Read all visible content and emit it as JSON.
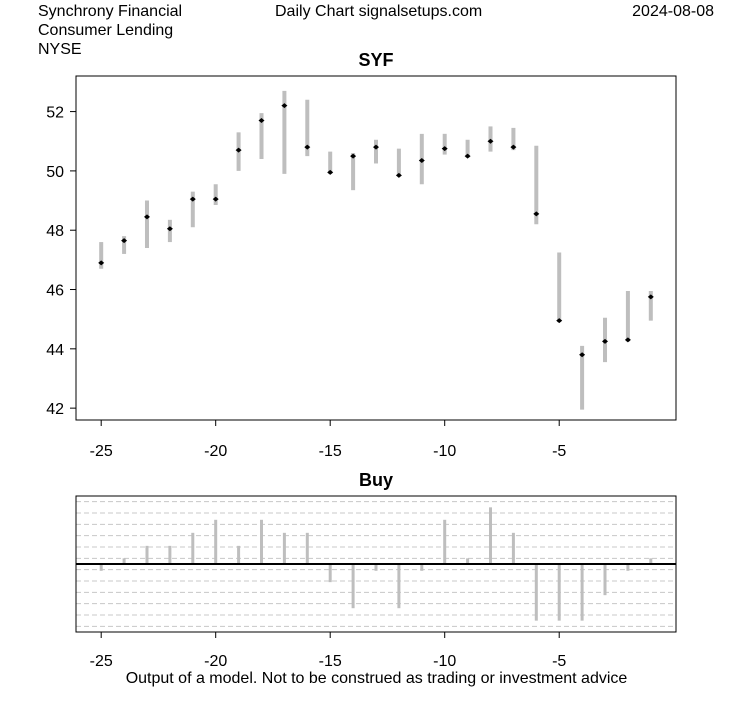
{
  "header": {
    "company": "Synchrony Financial",
    "sector": "Consumer Lending",
    "exchange": "NYSE",
    "center_title": "Daily Chart signalsetups.com",
    "date": "2024-08-08"
  },
  "footer": "Output of a model. Not to be construed as trading or investment advice",
  "colors": {
    "bar": "#bebebe",
    "grid": "#c8c8c8",
    "frame": "#000000"
  },
  "chart_data": [
    {
      "type": "range-bar",
      "title": "SYF",
      "xlim": [
        -26.1,
        0.1
      ],
      "ylim": [
        41.6,
        53.2
      ],
      "x_ticks": [
        -25,
        -20,
        -15,
        -10,
        -5
      ],
      "y_ticks": [
        42,
        44,
        46,
        48,
        50,
        52
      ],
      "bars": [
        {
          "x": -25,
          "low": 46.7,
          "high": 47.6,
          "close": 46.9
        },
        {
          "x": -24,
          "low": 47.2,
          "high": 47.8,
          "close": 47.65
        },
        {
          "x": -23,
          "low": 47.4,
          "high": 49.0,
          "close": 48.45
        },
        {
          "x": -22,
          "low": 47.6,
          "high": 48.35,
          "close": 48.05
        },
        {
          "x": -21,
          "low": 48.1,
          "high": 49.3,
          "close": 49.05
        },
        {
          "x": -20,
          "low": 48.85,
          "high": 49.55,
          "close": 49.05
        },
        {
          "x": -19,
          "low": 50.0,
          "high": 51.3,
          "close": 50.7
        },
        {
          "x": -18,
          "low": 50.4,
          "high": 51.95,
          "close": 51.7
        },
        {
          "x": -17,
          "low": 49.9,
          "high": 52.7,
          "close": 52.2
        },
        {
          "x": -16,
          "low": 50.5,
          "high": 52.4,
          "close": 50.8
        },
        {
          "x": -15,
          "low": 49.9,
          "high": 50.65,
          "close": 49.95
        },
        {
          "x": -14,
          "low": 49.35,
          "high": 50.6,
          "close": 50.5
        },
        {
          "x": -13,
          "low": 50.25,
          "high": 51.05,
          "close": 50.8
        },
        {
          "x": -12,
          "low": 49.85,
          "high": 50.75,
          "close": 49.85
        },
        {
          "x": -11,
          "low": 49.55,
          "high": 51.25,
          "close": 50.35
        },
        {
          "x": -10,
          "low": 50.55,
          "high": 51.25,
          "close": 50.75
        },
        {
          "x": -9,
          "low": 50.45,
          "high": 51.05,
          "close": 50.5
        },
        {
          "x": -8,
          "low": 50.65,
          "high": 51.5,
          "close": 51.0
        },
        {
          "x": -7,
          "low": 50.7,
          "high": 51.45,
          "close": 50.8
        },
        {
          "x": -6,
          "low": 48.2,
          "high": 50.85,
          "close": 48.55
        },
        {
          "x": -5,
          "low": 44.9,
          "high": 47.25,
          "close": 44.95
        },
        {
          "x": -4,
          "low": 41.95,
          "high": 44.1,
          "close": 43.8
        },
        {
          "x": -3,
          "low": 43.55,
          "high": 45.05,
          "close": 44.25
        },
        {
          "x": -2,
          "low": 44.25,
          "high": 45.95,
          "close": 44.3
        },
        {
          "x": -1,
          "low": 44.95,
          "high": 45.95,
          "close": 45.75
        }
      ]
    },
    {
      "type": "bar",
      "title": "Buy",
      "xlim": [
        -26.1,
        0.1
      ],
      "ylim": [
        -1.2,
        1.2
      ],
      "x_ticks": [
        -25,
        -20,
        -15,
        -10,
        -5
      ],
      "grid_y": [
        -1.1,
        -0.9,
        -0.7,
        -0.5,
        -0.3,
        -0.1,
        0.1,
        0.3,
        0.5,
        0.7,
        0.9,
        1.1
      ],
      "baseline": 0,
      "x": [
        -25,
        -24,
        -23,
        -22,
        -21,
        -20,
        -19,
        -18,
        -17,
        -16,
        -15,
        -14,
        -13,
        -12,
        -11,
        -10,
        -9,
        -8,
        -7,
        -6,
        -5,
        -4,
        -3,
        -2,
        -1
      ],
      "values": [
        -0.12,
        0.1,
        0.32,
        0.32,
        0.55,
        0.78,
        0.32,
        0.78,
        0.55,
        0.55,
        -0.32,
        -0.78,
        -0.12,
        -0.78,
        -0.12,
        0.78,
        0.1,
        1.0,
        0.55,
        -1.0,
        -1.0,
        -1.0,
        -0.55,
        -0.12,
        0.1
      ]
    }
  ]
}
